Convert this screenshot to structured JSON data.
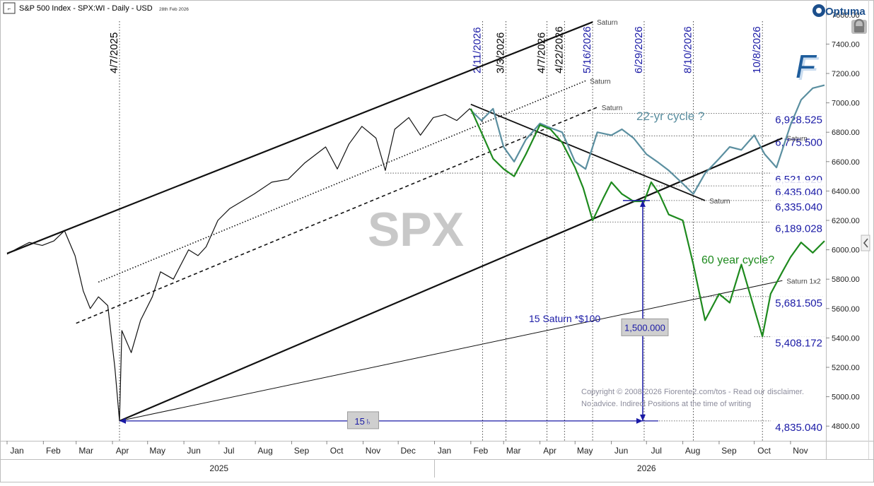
{
  "header": {
    "title": "S&P 500 Index - SPX:WI - Daily - USD",
    "date": "28th Feb 2026",
    "brand": "Optuma",
    "corner_icon": "app-menu-icon"
  },
  "watermark": "SPX",
  "logo_letter": "F",
  "lock_icon": "lock-icon",
  "collapse_icon": "chevron-left-icon",
  "chart_data": {
    "type": "line",
    "y_axis": {
      "min": 4700,
      "max": 7700,
      "ticks": [
        4800,
        5000,
        5200,
        5400,
        5600,
        5800,
        6000,
        6200,
        6400,
        6600,
        6800,
        7000,
        7200,
        7400,
        7600
      ],
      "tick_labels": [
        "4800.00",
        "5000.00",
        "5200.00",
        "5400.00",
        "5600.00",
        "5800.00",
        "6000.00",
        "6200.00",
        "6400.00",
        "6600.00",
        "6800.00",
        "7000.00",
        "7200.00",
        "7400.00",
        "7600.00"
      ]
    },
    "x_axis": {
      "start": "2025-01-01",
      "end": "2026-11-30",
      "months": [
        {
          "label": "Jan",
          "date": "2025-01-01"
        },
        {
          "label": "Feb",
          "date": "2025-02-01"
        },
        {
          "label": "Mar",
          "date": "2025-03-01"
        },
        {
          "label": "Apr",
          "date": "2025-04-01"
        },
        {
          "label": "May",
          "date": "2025-05-01"
        },
        {
          "label": "Jun",
          "date": "2025-06-01"
        },
        {
          "label": "Jul",
          "date": "2025-07-01"
        },
        {
          "label": "Aug",
          "date": "2025-08-01"
        },
        {
          "label": "Sep",
          "date": "2025-09-01"
        },
        {
          "label": "Oct",
          "date": "2025-10-01"
        },
        {
          "label": "Nov",
          "date": "2025-11-01"
        },
        {
          "label": "Dec",
          "date": "2025-12-01"
        },
        {
          "label": "Jan",
          "date": "2026-01-01"
        },
        {
          "label": "Feb",
          "date": "2026-02-01"
        },
        {
          "label": "Mar",
          "date": "2026-03-01"
        },
        {
          "label": "Apr",
          "date": "2026-04-01"
        },
        {
          "label": "May",
          "date": "2026-05-01"
        },
        {
          "label": "Jun",
          "date": "2026-06-01"
        },
        {
          "label": "Jul",
          "date": "2026-07-01"
        },
        {
          "label": "Aug",
          "date": "2026-08-01"
        },
        {
          "label": "Sep",
          "date": "2026-09-01"
        },
        {
          "label": "Oct",
          "date": "2026-10-01"
        },
        {
          "label": "Nov",
          "date": "2026-11-01"
        }
      ],
      "years": [
        {
          "label": "2025",
          "date": "2025-07-01"
        },
        {
          "label": "2026",
          "date": "2026-07-01"
        }
      ],
      "year_divider": "2026-01-01"
    },
    "date_lines": [
      {
        "label": "4/7/2025",
        "date": "2025-04-07",
        "color": "#000000"
      },
      {
        "label": "2/11/2026",
        "date": "2026-02-11",
        "color": "#1a1aa6"
      },
      {
        "label": "3/3/2026",
        "date": "2026-03-03",
        "color": "#000000"
      },
      {
        "label": "4/7/2026",
        "date": "2026-04-07",
        "color": "#000000"
      },
      {
        "label": "4/22/2026",
        "date": "2026-04-22",
        "color": "#000000"
      },
      {
        "label": "5/16/2026",
        "date": "2026-05-16",
        "color": "#1a1aa6"
      },
      {
        "label": "6/29/2026",
        "date": "2026-06-29",
        "color": "#1a1aa6"
      },
      {
        "label": "8/10/2026",
        "date": "2026-08-10",
        "color": "#1a1aa6"
      },
      {
        "label": "10/8/2026",
        "date": "2026-10-08",
        "color": "#1a1aa6"
      }
    ],
    "price_levels": [
      {
        "label": "6,928.525",
        "value": 6928.525,
        "from": "2026-02-01"
      },
      {
        "label": "6,775.500",
        "value": 6775.5,
        "from": "2026-02-01"
      },
      {
        "label": "6,521.920",
        "value": 6521.92,
        "from": "2025-11-20"
      },
      {
        "label": "6,435.040",
        "value": 6435.04,
        "from": "2026-07-01"
      },
      {
        "label": "6,335.040",
        "value": 6335.04,
        "from": "2026-07-01"
      },
      {
        "label": "6,189.028",
        "value": 6189.028,
        "from": "2026-05-16"
      },
      {
        "label": "5,681.505",
        "value": 5681.505,
        "from": "2026-08-10"
      },
      {
        "label": "5,408.172",
        "value": 5408.172,
        "from": "2026-10-01"
      },
      {
        "label": "4,835.040",
        "value": 4835.04,
        "from": "2025-04-07"
      }
    ],
    "trend_lines": [
      {
        "label": "Saturn",
        "style": "solid",
        "width": 2.2,
        "from": {
          "date": "2025-01-01",
          "value": 5975
        },
        "to": {
          "date": "2026-05-16",
          "value": 7550
        }
      },
      {
        "label": "Saturn",
        "style": "dotted",
        "width": 1.6,
        "from": {
          "date": "2025-03-20",
          "value": 5780
        },
        "to": {
          "date": "2026-05-10",
          "value": 7150
        }
      },
      {
        "label": "Saturn",
        "style": "dashed",
        "width": 1.6,
        "from": {
          "date": "2025-03-01",
          "value": 5500
        },
        "to": {
          "date": "2026-05-20",
          "value": 6970
        }
      },
      {
        "label": "Saturn",
        "style": "solid",
        "width": 1.8,
        "from": {
          "date": "2026-02-01",
          "value": 6990
        },
        "to": {
          "date": "2026-08-20",
          "value": 6335
        }
      },
      {
        "label": "Saturn",
        "style": "solid",
        "width": 2.2,
        "from": {
          "date": "2025-04-07",
          "value": 4835
        },
        "to": {
          "date": "2026-10-25",
          "value": 6760
        }
      },
      {
        "label": "Saturn 1x2",
        "style": "solid",
        "width": 1,
        "from": {
          "date": "2025-04-07",
          "value": 4835
        },
        "to": {
          "date": "2026-10-25",
          "value": 5790
        }
      }
    ],
    "annotations": {
      "cycle_22": "22-yr cycle ?",
      "cycle_60": "60 year cycle?",
      "saturn_measure": "15 Saturn *$100",
      "measure_value": "1,500.000",
      "fifteen_saturn": "15♄",
      "copyright": "Copyright © 2008-2026 Fiorente2.com/tos -  Read our disclaimer.",
      "advice": "No advice. Indirect Positions at the time of writing"
    },
    "series": [
      {
        "name": "SPX",
        "kind": "price",
        "color": "#111111",
        "x": [
          "2025-01-01",
          "2025-01-10",
          "2025-01-20",
          "2025-01-31",
          "2025-02-10",
          "2025-02-19",
          "2025-02-28",
          "2025-03-07",
          "2025-03-13",
          "2025-03-20",
          "2025-03-28",
          "2025-04-03",
          "2025-04-07",
          "2025-04-09",
          "2025-04-17",
          "2025-04-25",
          "2025-05-05",
          "2025-05-12",
          "2025-05-23",
          "2025-06-05",
          "2025-06-13",
          "2025-06-20",
          "2025-06-30",
          "2025-07-10",
          "2025-07-31",
          "2025-08-15",
          "2025-08-29",
          "2025-09-12",
          "2025-09-30",
          "2025-10-10",
          "2025-10-20",
          "2025-10-31",
          "2025-11-12",
          "2025-11-20",
          "2025-11-28",
          "2025-12-10",
          "2025-12-20",
          "2025-12-31",
          "2026-01-10",
          "2026-01-20",
          "2026-01-31",
          "2026-02-11"
        ],
        "y": [
          5970,
          6010,
          6050,
          6030,
          6060,
          6130,
          5960,
          5720,
          5600,
          5680,
          5620,
          5200,
          4835,
          5450,
          5300,
          5520,
          5680,
          5850,
          5800,
          6000,
          5960,
          6020,
          6200,
          6280,
          6380,
          6460,
          6480,
          6590,
          6700,
          6550,
          6720,
          6840,
          6760,
          6540,
          6820,
          6900,
          6780,
          6900,
          6920,
          6880,
          6960,
          6870
        ]
      },
      {
        "name": "22-yr cycle ?",
        "kind": "cycle",
        "color": "#5b8fa0",
        "x": [
          "2026-02-01",
          "2026-02-10",
          "2026-02-20",
          "2026-03-01",
          "2026-03-10",
          "2026-03-20",
          "2026-04-01",
          "2026-04-10",
          "2026-04-20",
          "2026-05-01",
          "2026-05-10",
          "2026-05-20",
          "2026-06-01",
          "2026-06-10",
          "2026-06-20",
          "2026-07-01",
          "2026-07-10",
          "2026-07-20",
          "2026-08-01",
          "2026-08-10",
          "2026-08-20",
          "2026-09-01",
          "2026-09-10",
          "2026-09-20",
          "2026-10-01",
          "2026-10-10",
          "2026-10-20",
          "2026-11-01",
          "2026-11-10",
          "2026-11-20",
          "2026-11-30"
        ],
        "y": [
          6950,
          6880,
          6960,
          6700,
          6600,
          6750,
          6860,
          6830,
          6800,
          6600,
          6550,
          6800,
          6780,
          6820,
          6760,
          6650,
          6600,
          6540,
          6450,
          6380,
          6520,
          6620,
          6700,
          6680,
          6780,
          6650,
          6560,
          6850,
          7020,
          7100,
          7120
        ]
      },
      {
        "name": "60 year cycle?",
        "kind": "cycle",
        "color": "#1e8a1e",
        "x": [
          "2026-02-01",
          "2026-02-10",
          "2026-02-20",
          "2026-03-01",
          "2026-03-10",
          "2026-03-20",
          "2026-04-01",
          "2026-04-10",
          "2026-04-20",
          "2026-05-01",
          "2026-05-08",
          "2026-05-16",
          "2026-05-25",
          "2026-06-01",
          "2026-06-10",
          "2026-06-20",
          "2026-06-29",
          "2026-07-05",
          "2026-07-12",
          "2026-07-20",
          "2026-08-01",
          "2026-08-10",
          "2026-08-20",
          "2026-09-01",
          "2026-09-10",
          "2026-09-20",
          "2026-10-01",
          "2026-10-08",
          "2026-10-15",
          "2026-10-25",
          "2026-11-01",
          "2026-11-10",
          "2026-11-20",
          "2026-11-30"
        ],
        "y": [
          6960,
          6800,
          6620,
          6550,
          6500,
          6650,
          6850,
          6820,
          6730,
          6560,
          6420,
          6200,
          6350,
          6460,
          6380,
          6330,
          6330,
          6460,
          6380,
          6240,
          6200,
          5900,
          5520,
          5700,
          5640,
          5900,
          5600,
          5410,
          5700,
          5850,
          5950,
          6050,
          5980,
          6060
        ]
      }
    ]
  }
}
